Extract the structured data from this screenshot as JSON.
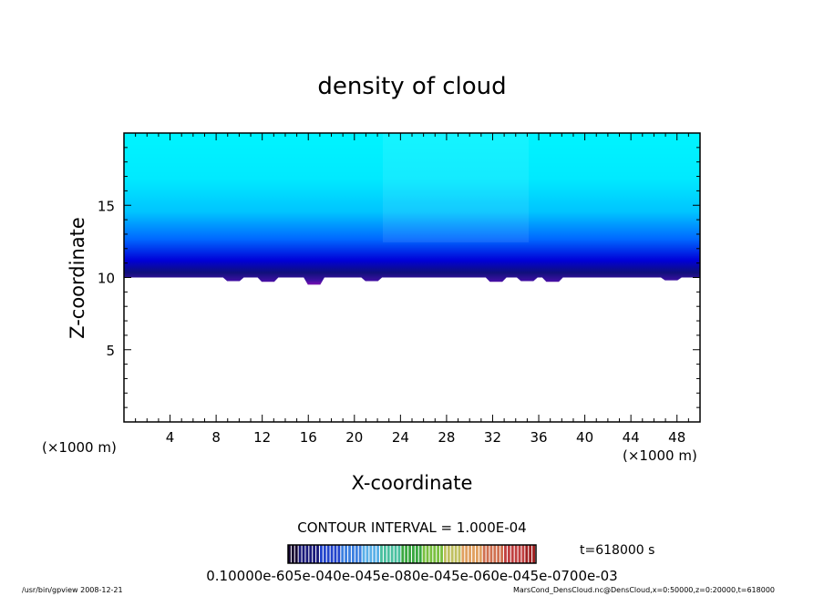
{
  "chart_data": {
    "type": "heatmap",
    "title": "density of cloud",
    "xlabel": "X-coordinate",
    "ylabel": "Z-coordinate",
    "x_unit": "(×1000 m)",
    "xlim": [
      0,
      50
    ],
    "ylim": [
      0,
      20
    ],
    "x_ticks": [
      4,
      8,
      12,
      16,
      20,
      24,
      28,
      32,
      36,
      40,
      44,
      48
    ],
    "y_ticks": [
      5,
      10,
      15
    ],
    "cloud_layer": {
      "z_base": 10.0,
      "z_top": 20.0,
      "base_dips": [
        {
          "x": 9.5,
          "dz": 0.25
        },
        {
          "x": 12.5,
          "dz": 0.3
        },
        {
          "x": 16.5,
          "dz": 0.5
        },
        {
          "x": 21.5,
          "dz": 0.25
        },
        {
          "x": 32.3,
          "dz": 0.3
        },
        {
          "x": 35.0,
          "dz": 0.25
        },
        {
          "x": 37.2,
          "dz": 0.3
        },
        {
          "x": 47.5,
          "dz": 0.2
        }
      ],
      "colors_bottom_to_top": [
        "#7a10b0",
        "#1b1070",
        "#0000d0",
        "#0070ff",
        "#00c8ff",
        "#00f0ff"
      ]
    },
    "contour_interval": "CONTOUR INTERVAL = 1.000E-04",
    "time": "t=618000 s",
    "colorbar_labels": "0.10000e-605e-040e-045e-080e-045e-060e-045e-0700e-03",
    "colorbar_colors": [
      "#160730",
      "#1a1a7a",
      "#2244cc",
      "#3c7fe0",
      "#5ab0e8",
      "#4ac0a0",
      "#3aa840",
      "#7ac040",
      "#c0c060",
      "#e0a060",
      "#d07050",
      "#c04040",
      "#a02020"
    ]
  },
  "footer": {
    "left": "/usr/bin/gpview   2008-12-21",
    "right": "MarsCond_DensCloud.nc@DensCloud,x=0:50000,z=0:20000,t=618000"
  }
}
